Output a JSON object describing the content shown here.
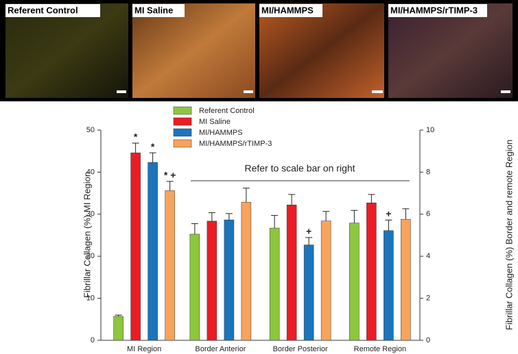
{
  "image_panels": {
    "labels": [
      "Referent Control",
      "MI Saline",
      "MI/HAMMPS",
      "MI/HAMMPS/rTIMP-3"
    ]
  },
  "chart_data": {
    "type": "bar",
    "categories": [
      "MI Region",
      "Border Anterior",
      "Border Posterior",
      "Remote Region"
    ],
    "value_axes": [
      "y",
      "y2",
      "y2",
      "y2"
    ],
    "series": [
      {
        "name": "Referent Control",
        "color": "#8dc63f",
        "values": [
          5.7,
          5.05,
          5.34,
          5.58
        ],
        "errors": [
          0.3,
          0.5,
          0.6,
          0.6
        ],
        "markers": [
          null,
          null,
          null,
          null
        ]
      },
      {
        "name": "MI Saline",
        "color": "#ed1c24",
        "values": [
          44.6,
          5.67,
          6.44,
          6.54
        ],
        "errors": [
          2.3,
          0.4,
          0.5,
          0.4
        ],
        "markers": [
          "*",
          null,
          null,
          null
        ]
      },
      {
        "name": "MI/HAMMPS",
        "color": "#1b75bc",
        "values": [
          42.3,
          5.73,
          4.54,
          5.22
        ],
        "errors": [
          2.3,
          0.3,
          0.35,
          0.5
        ],
        "markers": [
          "*",
          null,
          "+",
          "+"
        ]
      },
      {
        "name": "MI/HAMMPS/rTIMP-3",
        "color": "#f7a35c",
        "values": [
          35.6,
          6.57,
          5.68,
          5.76
        ],
        "errors": [
          2.2,
          0.67,
          0.45,
          0.5
        ],
        "markers": [
          "* +",
          null,
          null,
          null
        ]
      }
    ],
    "ylabel": "Fibrillar Collagen (%) MI Region",
    "y2label": "Fibrillar Collagen (%) Border and remote Region",
    "ylim": [
      0,
      50
    ],
    "yticks": [
      0,
      10,
      20,
      30,
      40,
      50
    ],
    "y2lim": [
      0,
      10
    ],
    "y2ticks": [
      0,
      2,
      4,
      6,
      8,
      10
    ],
    "annotation": "Refer to scale bar on right",
    "legend": "top-left"
  }
}
